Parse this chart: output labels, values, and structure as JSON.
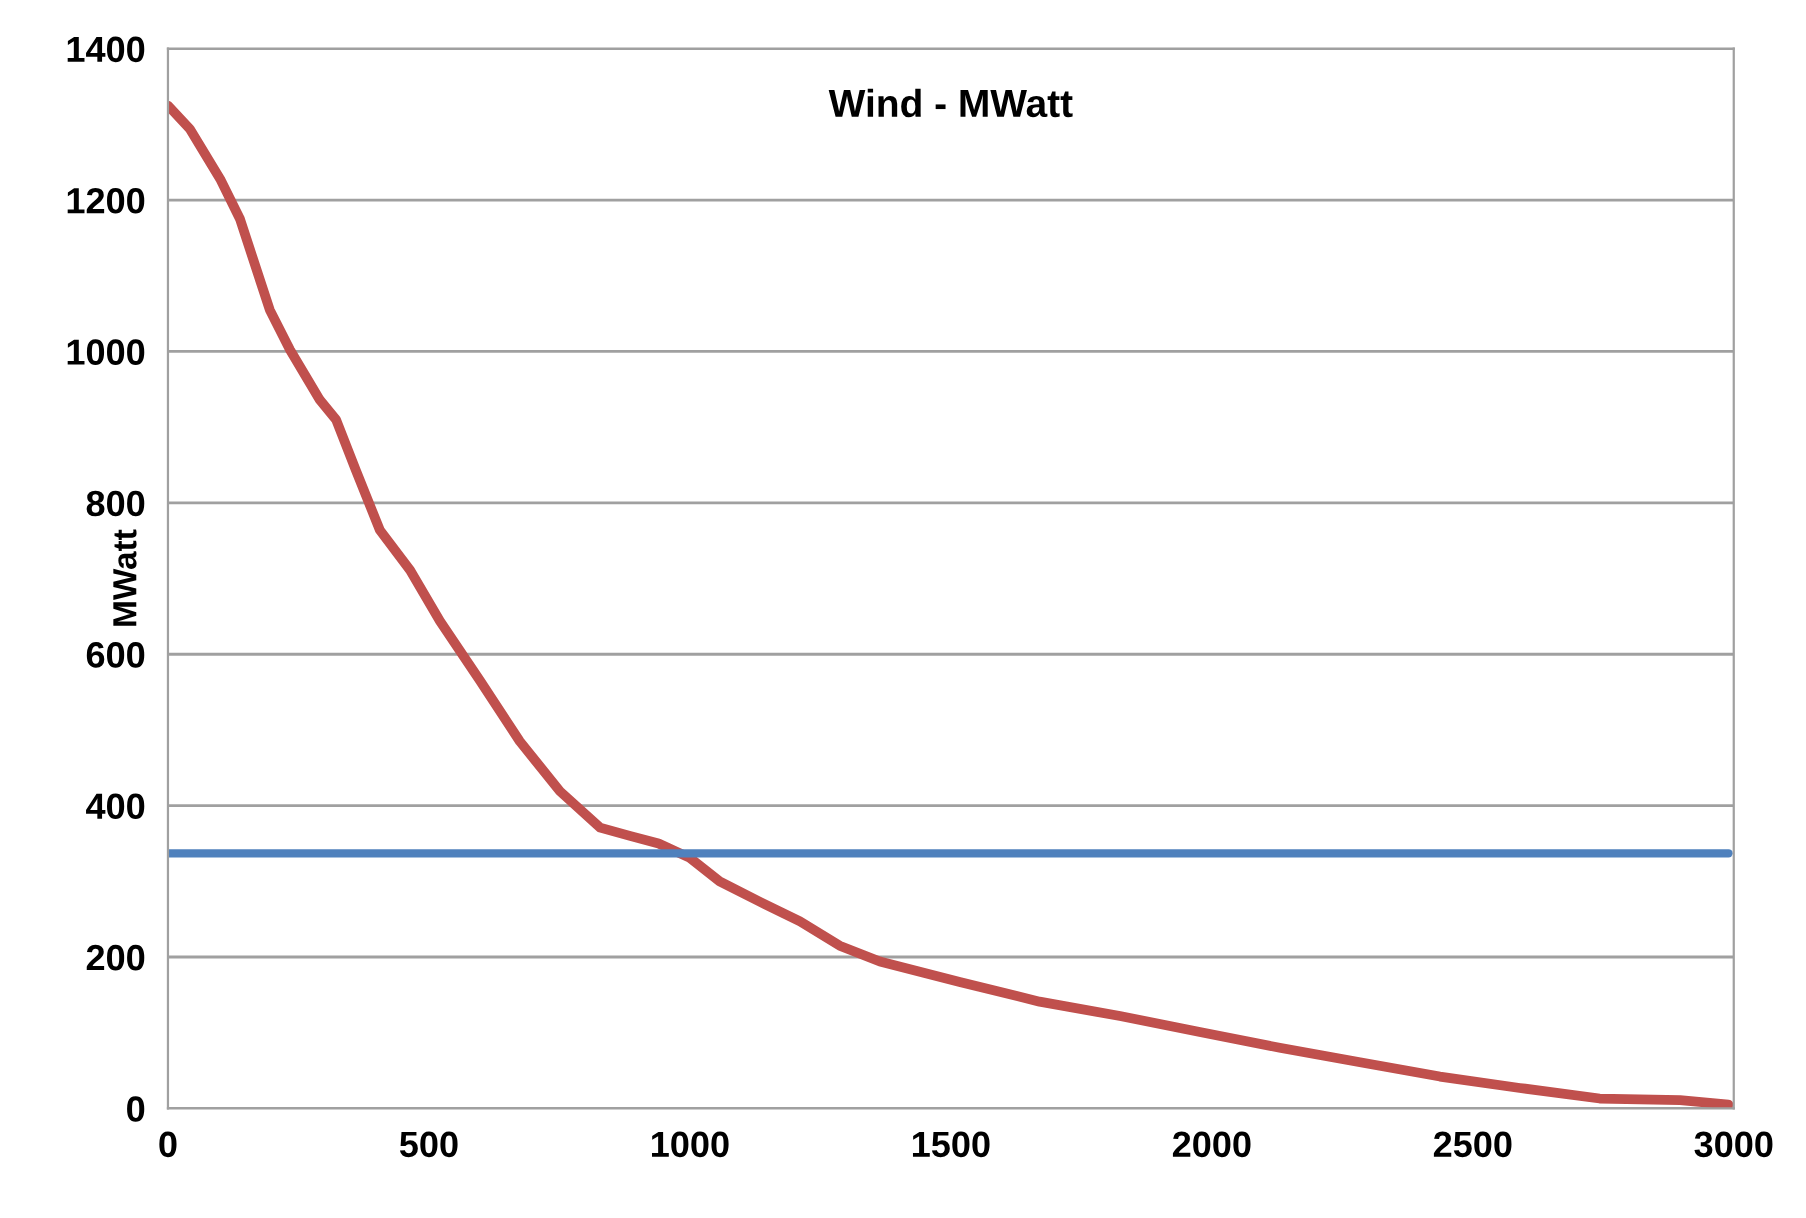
{
  "chart_data": {
    "type": "line",
    "title": "Wind - MWatt",
    "ylabel": "MWatt",
    "series": [
      {
        "color": "#c0504d",
        "x": [
          0,
          42,
          100,
          138,
          195,
          234,
          291,
          322,
          360,
          406,
          464,
          521,
          598,
          674,
          751,
          828,
          885,
          940,
          1000,
          1057,
          1134,
          1211,
          1287,
          1364,
          1517,
          1670,
          1824,
          1977,
          2130,
          2284,
          2437,
          2590,
          2743,
          2897,
          2990
        ],
        "values": [
          1325,
          1294,
          1228,
          1175,
          1055,
          1002,
          936,
          910,
          843,
          764,
          711,
          644,
          565,
          485,
          419,
          371,
          360,
          350,
          331,
          300,
          273,
          247,
          215,
          194,
          167,
          141,
          122,
          101,
          80,
          61,
          42,
          27,
          13,
          11,
          5
        ]
      },
      {
        "color": "#4f81bd",
        "x": [
          0,
          2990
        ],
        "values": [
          337,
          337
        ]
      }
    ],
    "xlim": [
      0,
      3000
    ],
    "xticks": [
      0,
      500,
      1000,
      1500,
      2000,
      2500,
      3000
    ],
    "ylim": [
      0,
      1400
    ],
    "yticks": [
      0,
      200,
      400,
      600,
      800,
      1000,
      1200,
      1400
    ],
    "grid": "y",
    "marker": "none",
    "line_style": "solid"
  }
}
